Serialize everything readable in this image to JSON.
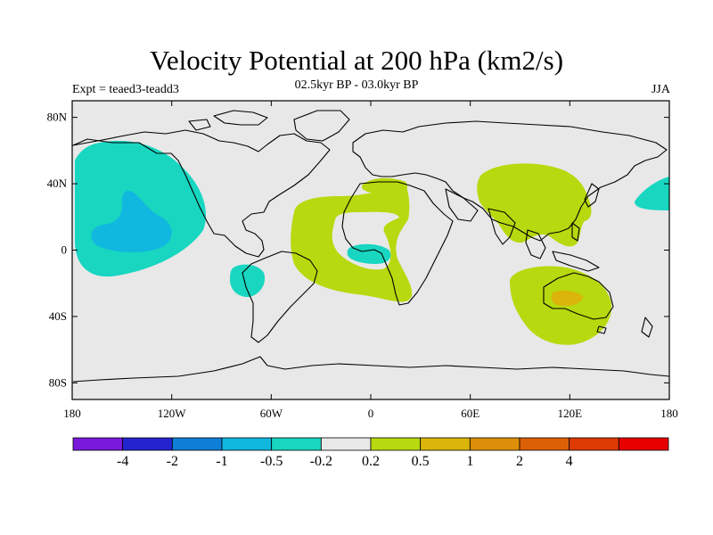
{
  "title": "Velocity Potential at 200 hPa (km2/s)",
  "subtitle": "02.5kyr BP - 03.0kyr BP",
  "experiment": "Expt = teaed3-teadd3",
  "season": "JJA",
  "map": {
    "projection": "cylindrical equidistant",
    "lon_range": [
      -180,
      180
    ],
    "lat_range": [
      -90,
      90
    ],
    "x_ticks": [
      {
        "lon": -180,
        "label": "180"
      },
      {
        "lon": -120,
        "label": "120W"
      },
      {
        "lon": -60,
        "label": "60W"
      },
      {
        "lon": 0,
        "label": "0"
      },
      {
        "lon": 60,
        "label": "60E"
      },
      {
        "lon": 120,
        "label": "120E"
      },
      {
        "lon": 180,
        "label": "180"
      }
    ],
    "y_ticks": [
      {
        "lat": 80,
        "label": "80N"
      },
      {
        "lat": 40,
        "label": "40N"
      },
      {
        "lat": 0,
        "label": "0"
      },
      {
        "lat": -40,
        "label": "40S"
      },
      {
        "lat": -80,
        "label": "80S"
      }
    ],
    "background_color": "#e8e8e8"
  },
  "colorbar": {
    "colors": [
      "#7a18dc",
      "#2424cf",
      "#0f7ed6",
      "#10b7df",
      "#18d6c0",
      "#e8e8e8",
      "#b7d90f",
      "#dcb50a",
      "#dc8f08",
      "#dc6006",
      "#de3a04",
      "#e60000"
    ],
    "labels": [
      "-4",
      "-2",
      "-1",
      "-0.5",
      "-0.2",
      "0.2",
      "0.5",
      "1",
      "2",
      "4"
    ]
  }
}
